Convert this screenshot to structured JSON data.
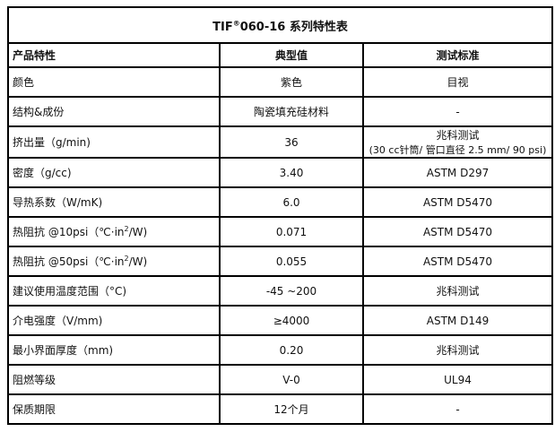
{
  "title": {
    "prefix": "TIF",
    "sup": "®",
    "suffix": "060-16  系列特性表"
  },
  "header": [
    "产品特性",
    "典型值",
    "测试标准"
  ],
  "rows": [
    {
      "prop": "颜色",
      "value": "紫色",
      "std": "目视"
    },
    {
      "prop": "结构&成份",
      "value": "陶瓷填充硅材料",
      "std": "-"
    },
    {
      "prop": "挤出量（g/min)",
      "value": "36",
      "std": "兆科测试",
      "std_note": "(30 cc针筒/ 管口直径 2.5 mm/ 90 psi)"
    },
    {
      "prop": "密度（g/cc)",
      "value": "3.40",
      "std": "ASTM D297"
    },
    {
      "prop": "导热系数（W/mK)",
      "value": "6.0",
      "std": "ASTM D5470"
    },
    {
      "prop": "热阻抗 @10psi（℃·in",
      "prop_sup": "2",
      "prop_suffix": "/W)",
      "value": "0.071",
      "std": "ASTM D5470"
    },
    {
      "prop": "热阻抗 @50psi（℃·in",
      "prop_sup": "2",
      "prop_suffix": "/W)",
      "value": "0.055",
      "std": "ASTM D5470"
    },
    {
      "prop": "建议使用温度范围（°C)",
      "value": "-45 ~200",
      "std": "兆科测试"
    },
    {
      "prop": "介电强度（V/mm)",
      "value": "≥4000",
      "std": "ASTM D149"
    },
    {
      "prop": "最小界面厚度（mm)",
      "value": "0.20",
      "std": "兆科测试"
    },
    {
      "prop": "阻燃等级",
      "value": "V-0",
      "std": "UL94"
    },
    {
      "prop": "保质期限",
      "value": "12个月",
      "std": "-"
    }
  ]
}
